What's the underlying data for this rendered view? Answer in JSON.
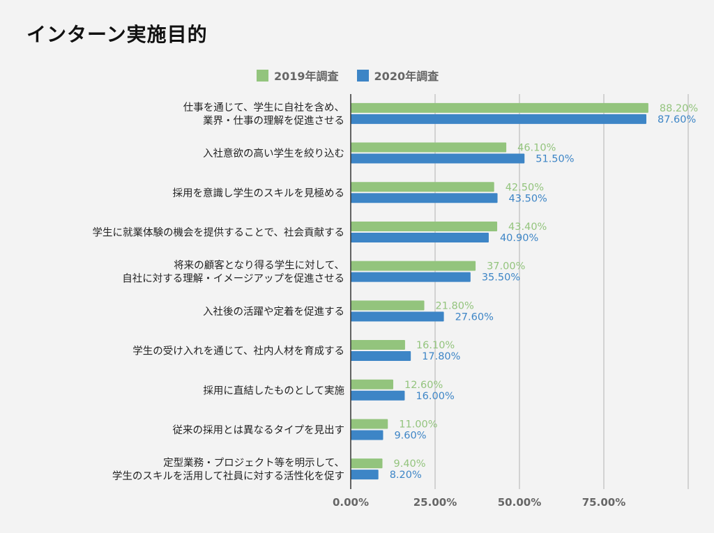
{
  "colors": {
    "series_2019": "#93c47d",
    "series_2020": "#3d85c6",
    "grid": "#bdbdbd",
    "axis": "#333333",
    "tick_text": "#666666"
  },
  "chart_data": {
    "type": "bar",
    "orientation": "horizontal",
    "title": "インターン実施目的",
    "xlabel": "",
    "ylabel": "",
    "xlim": [
      0,
      100
    ],
    "x_ticks": [
      "0.00%",
      "25.00%",
      "50.00%",
      "75.00%"
    ],
    "grid": true,
    "legend_position": "top",
    "categories": [
      [
        "仕事を通じて、学生に自社を含め、",
        "業界・仕事の理解を促進させる"
      ],
      [
        "入社意欲の高い学生を絞り込む"
      ],
      [
        "採用を意識し学生のスキルを見極める"
      ],
      [
        "学生に就業体験の機会を提供することで、社会貢献する"
      ],
      [
        "将来の顧客となり得る学生に対して、",
        "自社に対する理解・イメージアップを促進させる"
      ],
      [
        "入社後の活躍や定着を促進する"
      ],
      [
        "学生の受け入れを通じて、社内人材を育成する"
      ],
      [
        "採用に直結したものとして実施"
      ],
      [
        "従来の採用とは異なるタイプを見出す"
      ],
      [
        "定型業務・プロジェクト等を明示して、",
        "学生のスキルを活用して社員に対する活性化を促す"
      ]
    ],
    "series": [
      {
        "name": "2019年調査",
        "values": [
          88.2,
          46.1,
          42.5,
          43.4,
          37.0,
          21.8,
          16.1,
          12.6,
          11.0,
          9.4
        ],
        "labels": [
          "88.20%",
          "46.10%",
          "42.50%",
          "43.40%",
          "37.00%",
          "21.80%",
          "16.10%",
          "12.60%",
          "11.00%",
          "9.40%"
        ]
      },
      {
        "name": "2020年調査",
        "values": [
          87.6,
          51.5,
          43.5,
          40.9,
          35.5,
          27.6,
          17.8,
          16.0,
          9.6,
          8.2
        ],
        "labels": [
          "87.60%",
          "51.50%",
          "43.50%",
          "40.90%",
          "35.50%",
          "27.60%",
          "17.80%",
          "16.00%",
          "9.60%",
          "8.20%"
        ]
      }
    ]
  }
}
